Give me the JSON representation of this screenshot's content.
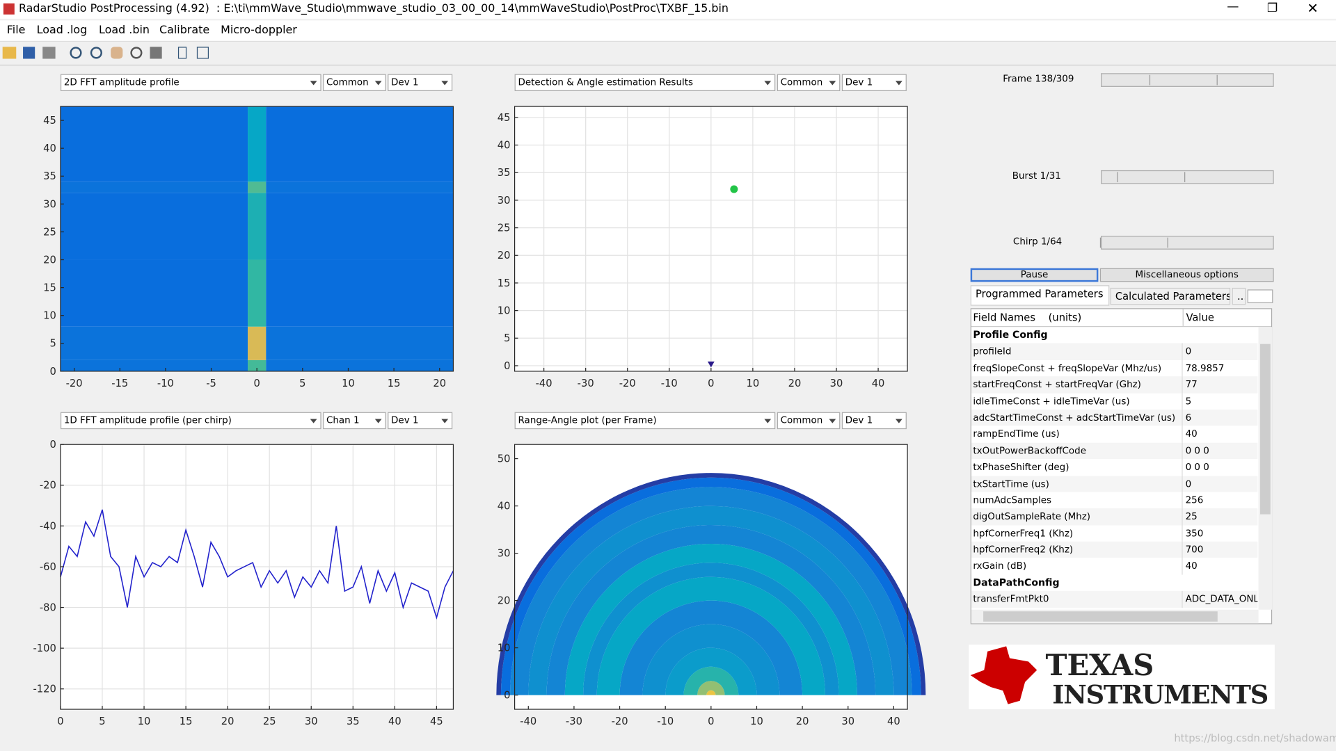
{
  "window": {
    "title": "RadarStudio PostProcessing (4.92)  : E:\\ti\\mmWave_Studio\\mmwave_studio_03_00_00_14\\mmWaveStudio\\PostProc\\TXBF_15.bin",
    "menu": [
      "File",
      "Load .log",
      "Load .bin",
      "Calibrate",
      "Micro-doppler"
    ]
  },
  "chart_data": [
    {
      "type": "heatmap",
      "dropdowns": [
        "2D FFT amplitude profile",
        "Common",
        "Dev 1"
      ],
      "colormap": "parula",
      "clim": [
        0,
        1
      ],
      "x_bins": [
        -21.5,
        -1,
        1,
        21.5
      ],
      "y_bins": [
        0,
        2,
        8,
        20,
        32,
        34,
        47.5
      ],
      "z": [
        [
          0.22,
          0.62,
          0.22
        ],
        [
          0.22,
          0.85,
          0.22
        ],
        [
          0.2,
          0.58,
          0.2
        ],
        [
          0.2,
          0.52,
          0.2
        ],
        [
          0.22,
          0.64,
          0.22
        ],
        [
          0.2,
          0.45,
          0.2
        ]
      ],
      "xlim": [
        -21.5,
        21.5
      ],
      "ylim": [
        0,
        47.5
      ],
      "xticks": [
        -20,
        -15,
        -10,
        -5,
        0,
        5,
        10,
        15,
        20
      ],
      "yticks": [
        0,
        5,
        10,
        15,
        20,
        25,
        30,
        35,
        40,
        45
      ],
      "grid": false
    },
    {
      "type": "scatter",
      "dropdowns": [
        "Detection & Angle estimation Results",
        "Common",
        "Dev 1"
      ],
      "series": [
        {
          "color": "#22c447",
          "marker": "circle",
          "x": [
            5.5
          ],
          "values": [
            32
          ]
        },
        {
          "color": "#2a1a8a",
          "marker": "triangle",
          "x": [
            0
          ],
          "values": [
            0
          ]
        }
      ],
      "xlim": [
        -47,
        47
      ],
      "ylim": [
        -1,
        47
      ],
      "xticks": [
        -40,
        -30,
        -20,
        -10,
        0,
        10,
        20,
        30,
        40
      ],
      "yticks": [
        0,
        5,
        10,
        15,
        20,
        25,
        30,
        35,
        40,
        45
      ],
      "grid": true
    },
    {
      "type": "line",
      "dropdowns": [
        "1D FFT amplitude profile (per chirp)",
        "Chan 1",
        "Dev 1"
      ],
      "color": "#2222cc",
      "x": [
        0,
        1,
        2,
        3,
        4,
        5,
        6,
        7,
        8,
        9,
        10,
        11,
        12,
        13,
        14,
        15,
        16,
        17,
        18,
        19,
        20,
        21,
        22,
        23,
        24,
        25,
        26,
        27,
        28,
        29,
        30,
        31,
        32,
        33,
        34,
        35,
        36,
        37,
        38,
        39,
        40,
        41,
        42,
        43,
        44,
        45,
        46,
        47
      ],
      "values": [
        -65,
        -50,
        -55,
        -38,
        -45,
        -32,
        -55,
        -60,
        -80,
        -55,
        -65,
        -58,
        -60,
        -55,
        -58,
        -42,
        -55,
        -70,
        -48,
        -55,
        -65,
        -62,
        -60,
        -58,
        -70,
        -62,
        -68,
        -62,
        -75,
        -65,
        -70,
        -62,
        -68,
        -40,
        -72,
        -70,
        -60,
        -78,
        -62,
        -72,
        -63,
        -80,
        -68,
        -70,
        -72,
        -85,
        -70,
        -62
      ],
      "xlim": [
        0,
        47
      ],
      "ylim": [
        -130,
        0
      ],
      "xticks": [
        0,
        5,
        10,
        15,
        20,
        25,
        30,
        35,
        40,
        45
      ],
      "yticks": [
        -120,
        -100,
        -80,
        -60,
        -40,
        -20,
        0
      ],
      "grid": true
    },
    {
      "type": "polar_heatmap",
      "dropdowns": [
        "Range-Angle plot (per Frame)",
        "Common",
        "Dev 1"
      ],
      "colormap": "parula",
      "clim": [
        0,
        1
      ],
      "range_bins": [
        0,
        1,
        3,
        6,
        10,
        15,
        20,
        25,
        28,
        32,
        36,
        40,
        44,
        46,
        47
      ],
      "values": [
        0.9,
        0.75,
        0.55,
        0.4,
        0.35,
        0.3,
        0.45,
        0.35,
        0.45,
        0.3,
        0.35,
        0.3,
        0.2,
        0.05
      ],
      "xlim": [
        -43,
        43
      ],
      "ylim": [
        -3,
        53
      ],
      "xticks": [
        -40,
        -30,
        -20,
        -10,
        0,
        10,
        20,
        30,
        40
      ],
      "yticks": [
        0,
        10,
        20,
        30,
        40,
        50
      ],
      "grid": false
    }
  ],
  "controls": {
    "sliders": [
      "Frame 138/309",
      "Burst 1/31",
      "Chirp 1/64"
    ],
    "buttons": [
      "Pause",
      "Miscellaneous options"
    ],
    "tabs": [
      "Programmed Parameters",
      "Calculated Parameters",
      "..."
    ]
  },
  "table": {
    "header": [
      "Field Names    (units)",
      "Value"
    ],
    "sections": [
      {
        "title": "Profile Config",
        "rows": [
          [
            "profileId",
            "0"
          ],
          [
            "freqSlopeConst + freqSlopeVar (Mhz/us)",
            "78.9857"
          ],
          [
            "startFreqConst + startFreqVar (Ghz)",
            "77"
          ],
          [
            "idleTimeConst + idleTimeVar (us)",
            "5"
          ],
          [
            "adcStartTimeConst + adcStartTimeVar (us)",
            "6"
          ],
          [
            "rampEndTime (us)",
            "40"
          ],
          [
            "txOutPowerBackoffCode",
            "0 0 0"
          ],
          [
            "txPhaseShifter (deg)",
            "0 0 0"
          ],
          [
            "txStartTime (us)",
            "0"
          ],
          [
            "numAdcSamples",
            "256"
          ],
          [
            "digOutSampleRate (Mhz)",
            "25"
          ],
          [
            "hpfCornerFreq1 (Khz)",
            "350"
          ],
          [
            "hpfCornerFreq2 (Khz)",
            "700"
          ],
          [
            "rxGain (dB)",
            "40"
          ]
        ]
      },
      {
        "title": "DataPathConfig",
        "rows": [
          [
            "transferFmtPkt0",
            "ADC_DATA_ONL"
          ]
        ]
      }
    ]
  },
  "logo": [
    "TEXAS",
    "INSTRUMENTS"
  ],
  "watermark": "https://blog.csdn.net/shadowam"
}
